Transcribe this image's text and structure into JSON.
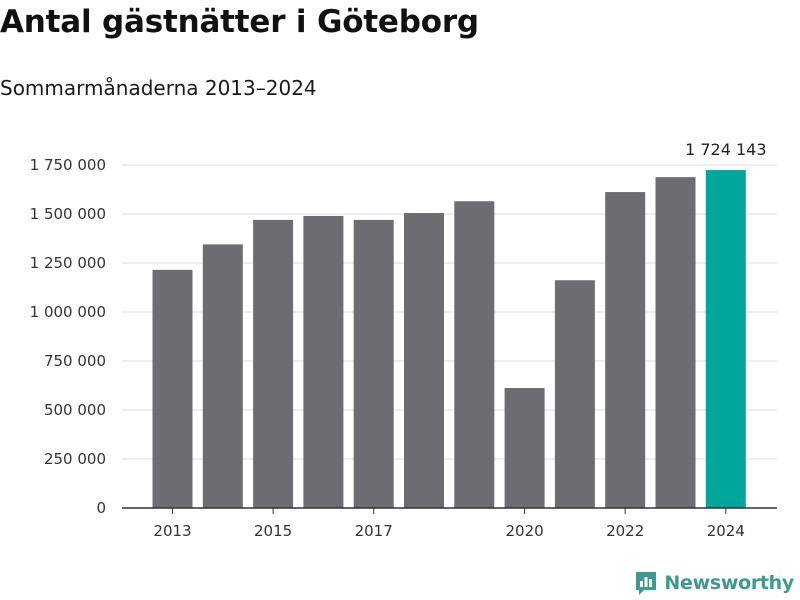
{
  "header": {
    "title": "Antal gästnätter i Göteborg",
    "subtitle": "Sommarmånaderna 2013–2024"
  },
  "brand": {
    "name": "Newsworthy",
    "icon": "newsworthy-logo-icon",
    "color": "#3e9a8f"
  },
  "colors": {
    "bar": "#6d6c71",
    "highlight": "#00a69c",
    "grid": "#dddddd",
    "axis": "#333333"
  },
  "chart_data": {
    "type": "bar",
    "categories": [
      "2013",
      "2014",
      "2015",
      "2016",
      "2017",
      "2018",
      "2019",
      "2020",
      "2021",
      "2022",
      "2023",
      "2024"
    ],
    "values": [
      1215000,
      1345000,
      1470000,
      1490000,
      1470000,
      1505000,
      1565000,
      612000,
      1162000,
      1612000,
      1688000,
      1724143
    ],
    "highlight_index": 11,
    "data_labels": [
      {
        "index": 11,
        "text": "1 724 143"
      }
    ],
    "x_tick_labels": [
      {
        "index": 0,
        "text": "2013"
      },
      {
        "index": 2,
        "text": "2015"
      },
      {
        "index": 4,
        "text": "2017"
      },
      {
        "index": 7,
        "text": "2020"
      },
      {
        "index": 9,
        "text": "2022"
      },
      {
        "index": 11,
        "text": "2024"
      }
    ],
    "y_ticks": [
      {
        "value": 0,
        "label": "0"
      },
      {
        "value": 250000,
        "label": "250 000"
      },
      {
        "value": 500000,
        "label": "500 000"
      },
      {
        "value": 750000,
        "label": "750 000"
      },
      {
        "value": 1000000,
        "label": "1 000 000"
      },
      {
        "value": 1250000,
        "label": "1 250 000"
      },
      {
        "value": 1500000,
        "label": "1 500 000"
      },
      {
        "value": 1750000,
        "label": "1 750 000"
      }
    ],
    "ylim": [
      0,
      1750000
    ],
    "grid": true,
    "legend": "none"
  }
}
